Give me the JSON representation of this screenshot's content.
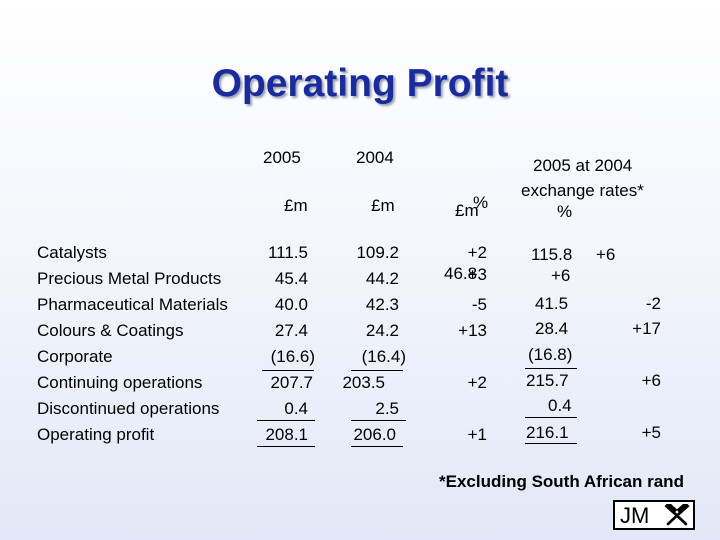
{
  "title": "Operating Profit",
  "headers": {
    "y2005": "2005",
    "y2004": "2004",
    "currency_2005": "£m",
    "currency_2004": "£m",
    "change_pct": "%",
    "change_currency": "£m",
    "at2004_line1": "2005 at 2004",
    "at2004_line2": "exchange rates*",
    "at2004_pct": "%"
  },
  "rows": [
    {
      "label": "Catalysts",
      "v2005": "111.5",
      "v2004": "109.2",
      "chg": "+2",
      "at2004": "115.8",
      "at2004_chg": "+6"
    },
    {
      "label": "Precious Metal Products",
      "v2005": "45.4",
      "v2004": "44.2",
      "chg": "+3",
      "chg_overlap": "46.8",
      "at2004": "+6",
      "at2004_chg": ""
    },
    {
      "label": "Pharmaceutical Materials",
      "v2005": "40.0",
      "v2004": "42.3",
      "chg": "-5",
      "at2004": "41.5",
      "at2004_chg": "-2"
    },
    {
      "label": "Colours & Coatings",
      "v2005": "27.4",
      "v2004": "24.2",
      "chg": "+13",
      "at2004": "28.4",
      "at2004_chg": "+17"
    },
    {
      "label": "Corporate",
      "v2005": "(16.6)",
      "v2004": "(16.4)",
      "chg": "",
      "at2004": "(16.8)",
      "at2004_chg": ""
    },
    {
      "label": "Continuing operations",
      "v2005": "207.7",
      "v2004": "203.5",
      "chg": "+2",
      "at2004": "215.7",
      "at2004_chg": "+6"
    },
    {
      "label": "Discontinued operations",
      "v2005": "0.4",
      "v2004": "2.5",
      "chg": "",
      "at2004": "0.4",
      "at2004_chg": ""
    },
    {
      "label": "Operating profit",
      "v2005": "208.1",
      "v2004": "206.0",
      "chg": "+1",
      "at2004": "216.1",
      "at2004_chg": "+5"
    }
  ],
  "footnote": "*Excluding South African rand",
  "logo": {
    "text": "JM",
    "icon": "crossed-hammers-icon"
  }
}
